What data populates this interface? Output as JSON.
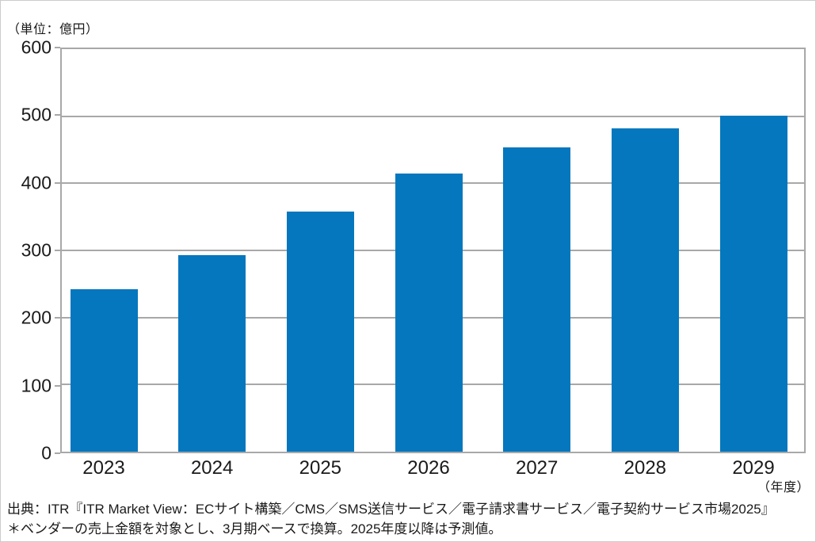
{
  "unit_label": "（単位：億円）",
  "x_axis_unit_label": "（年度）",
  "source": {
    "line1": "出典：ITR『ITR Market View：ECサイト構築／CMS／SMS送信サービス／電子請求書サービス／電子契約サービス市場2025』",
    "line2": "＊ベンダーの売上金額を対象とし、3月期ベースで換算。2025年度以降は予測値。"
  },
  "chart_data": {
    "type": "bar",
    "categories": [
      "2023",
      "2024",
      "2025",
      "2026",
      "2027",
      "2028",
      "2029"
    ],
    "values": [
      242,
      293,
      358,
      415,
      454,
      482,
      501
    ],
    "title": "",
    "xlabel": "（年度）",
    "ylabel": "（単位：億円）",
    "ylim": [
      0,
      600
    ],
    "yticks": [
      0,
      100,
      200,
      300,
      400,
      500,
      600
    ],
    "grid": true,
    "legend_position": "none",
    "bar_color": "#0477BE",
    "axis_color": "#A8A8A8"
  }
}
